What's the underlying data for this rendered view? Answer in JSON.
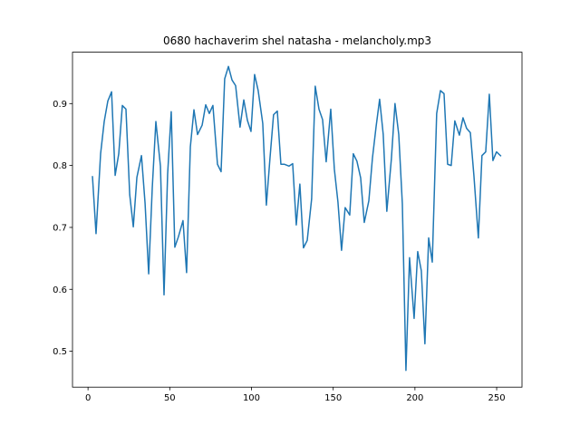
{
  "chart_data": {
    "type": "line",
    "title": "0680 hachaverim shel natasha - melancholy.mp3",
    "x": [
      2.7,
      4.9,
      7.7,
      9.9,
      12.1,
      14.4,
      16.6,
      18.8,
      21.0,
      23.2,
      25.5,
      27.7,
      29.9,
      32.7,
      34.9,
      37.1,
      39.3,
      41.5,
      44.3,
      46.5,
      48.7,
      50.9,
      53.1,
      55.3,
      58.1,
      60.3,
      62.6,
      64.8,
      67.0,
      69.8,
      72.0,
      74.2,
      76.4,
      79.2,
      81.4,
      83.6,
      85.9,
      88.1,
      90.3,
      93.0,
      95.3,
      97.5,
      99.7,
      101.9,
      104.1,
      106.9,
      109.1,
      111.3,
      113.5,
      115.8,
      118.0,
      120.2,
      123.0,
      125.2,
      127.4,
      129.6,
      131.8,
      134.1,
      136.8,
      139.0,
      141.3,
      143.5,
      145.7,
      148.5,
      150.7,
      152.9,
      155.1,
      157.3,
      160.1,
      162.3,
      164.5,
      166.8,
      169.0,
      171.8,
      174.0,
      176.2,
      178.4,
      180.6,
      182.8,
      185.6,
      187.8,
      190.1,
      192.3,
      194.5,
      196.7,
      199.5,
      201.7,
      203.9,
      206.1,
      208.4,
      210.6,
      213.3,
      215.6,
      217.8,
      220.0,
      222.2,
      224.4,
      227.2,
      229.4,
      231.6,
      233.9,
      236.1,
      238.8,
      241.0,
      243.3,
      245.5,
      247.7,
      249.9,
      252.7
    ],
    "series": [
      {
        "color": "#1f77b4",
        "values": [
          0.783,
          0.69,
          0.819,
          0.871,
          0.904,
          0.919,
          0.784,
          0.819,
          0.897,
          0.891,
          0.753,
          0.701,
          0.781,
          0.816,
          0.739,
          0.625,
          0.764,
          0.871,
          0.799,
          0.591,
          0.786,
          0.887,
          0.668,
          0.685,
          0.711,
          0.627,
          0.83,
          0.89,
          0.85,
          0.865,
          0.898,
          0.884,
          0.897,
          0.802,
          0.79,
          0.94,
          0.96,
          0.938,
          0.929,
          0.862,
          0.906,
          0.873,
          0.855,
          0.947,
          0.921,
          0.868,
          0.736,
          0.811,
          0.882,
          0.888,
          0.802,
          0.802,
          0.799,
          0.803,
          0.704,
          0.77,
          0.667,
          0.679,
          0.746,
          0.928,
          0.891,
          0.874,
          0.806,
          0.891,
          0.794,
          0.741,
          0.663,
          0.732,
          0.72,
          0.819,
          0.807,
          0.78,
          0.708,
          0.743,
          0.812,
          0.862,
          0.907,
          0.85,
          0.726,
          0.811,
          0.9,
          0.85,
          0.738,
          0.469,
          0.651,
          0.553,
          0.661,
          0.63,
          0.512,
          0.683,
          0.644,
          0.884,
          0.921,
          0.916,
          0.802,
          0.8,
          0.872,
          0.849,
          0.877,
          0.86,
          0.853,
          0.783,
          0.683,
          0.816,
          0.822,
          0.915,
          0.808,
          0.822,
          0.815
        ]
      }
    ],
    "xlim": [
      -9.5,
      265.5
    ],
    "xticks": [
      0,
      50,
      100,
      150,
      200,
      250
    ],
    "ylim": [
      0.442,
      0.983
    ],
    "yticks": [
      0.5,
      0.6,
      0.7,
      0.8,
      0.9
    ]
  }
}
